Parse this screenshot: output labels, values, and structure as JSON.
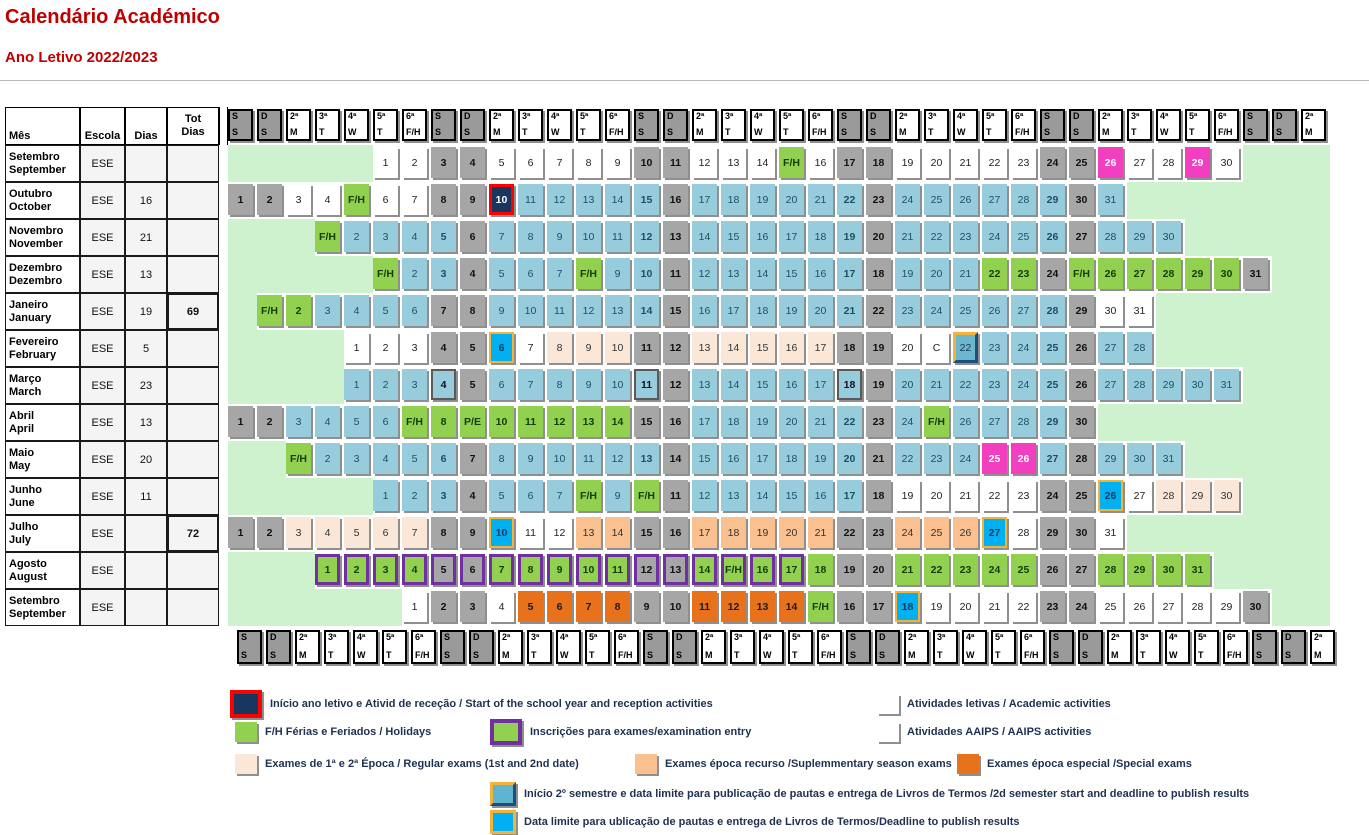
{
  "title": "Calendário Académico",
  "subtitle": "Ano Letivo 2022/2023",
  "colors": {
    "title_red": "#C00000",
    "academic_blue": "#97CCDD",
    "holiday_green": "#92D050",
    "weekend_gray": "#A6A6A6",
    "filler_green": "#CDF2CD",
    "aaips_pink": "#F23FC0",
    "exam_regular_cream": "#FAE7D8",
    "exam_recurso_peach": "#FAC090",
    "exam_especial_orange": "#E8721C",
    "start_navy": "#17375E",
    "start_border_red": "#FE0000",
    "deadline_blue": "#00B0F0",
    "deadline_border_gold": "#F2B33D",
    "inscricoes_border_purple": "#7030A0",
    "sem2_border_navy": "#1F4E79"
  },
  "table": {
    "left_headers": {
      "mes": "Mês",
      "escola": "Escola",
      "dias": "Dias",
      "tot_line1": "Tot",
      "tot_line2": "Dias"
    },
    "weekday_pattern": [
      [
        "S",
        "S",
        1
      ],
      [
        "D",
        "S",
        1
      ],
      [
        "2ª",
        "M",
        0
      ],
      [
        "3ª",
        "T",
        0
      ],
      [
        "4ª",
        "W",
        0
      ],
      [
        "5ª",
        "T",
        0
      ],
      [
        "6ª",
        "F/H",
        0
      ]
    ],
    "num_day_cols": 38,
    "months": [
      {
        "pt": "Setembro",
        "en": "September",
        "escola": "ESE",
        "dias": "",
        "tot": "",
        "start": 5,
        "codes": "w w g g w w w w w g g w w w h w g g w w w w w g g p w w p w",
        "labels": {
          "15": "F/H"
        }
      },
      {
        "pt": "Outubro",
        "en": "October",
        "escola": "ESE",
        "dias": "16",
        "tot": "",
        "start": 0,
        "codes": "g g w w h w w g g st b b b b b g b b b b b b g b b b b b b g b",
        "labels": {
          "5": "F/H"
        }
      },
      {
        "pt": "Novembro",
        "en": "November",
        "escola": "ESE",
        "dias": "21",
        "tot": "",
        "start": 3,
        "codes": "h b b b b g b b b b b b g b b b b b b g b b b b b b g b b b",
        "labels": {
          "1": "F/H"
        }
      },
      {
        "pt": "Dezembro",
        "en": "Dezembro",
        "escola": "ESE",
        "dias": "13",
        "tot": "",
        "start": 5,
        "codes": "h b b g b b b h b b g b b b b b b g b b b h h g h h h h h h g",
        "labels": {
          "1": "F/H",
          "8": "F/H",
          "25": "F/H"
        }
      },
      {
        "pt": "Janeiro",
        "en": "January",
        "escola": "ESE",
        "dias": "19",
        "tot": "69",
        "start": 1,
        "codes": "h h b b b b g g b b b b b b g b b b b b b g b b b b b b g w w",
        "labels": {
          "1": "F/H"
        }
      },
      {
        "pt": "Fevereiro",
        "en": "February",
        "escola": "ESE",
        "dias": "5",
        "tot": "",
        "start": 4,
        "codes": "w w w g g dl w c c c g g c c c c c g g w w d2 b b b g b b",
        "labels": {
          "21": "C"
        }
      },
      {
        "pt": "Março",
        "en": "March",
        "escola": "ESE",
        "dias": "23",
        "tot": "",
        "start": 4,
        "codes": "b b b bb g b b b b b bb g b b b b b bb g b b b b b b g b b b b b",
        "labels": {}
      },
      {
        "pt": "Abril",
        "en": "April",
        "escola": "ESE",
        "dias": "13",
        "tot": "",
        "start": 0,
        "codes": "g g b b b b h h h h h h h h g g b b b b b b g b h b b b b g",
        "labels": {
          "7": "F/H",
          "9": "P/E",
          "25": "F/H"
        }
      },
      {
        "pt": "Maio",
        "en": "May",
        "escola": "ESE",
        "dias": "20",
        "tot": "",
        "start": 2,
        "codes": "h b b b b b g b b b b b b g b b b b b b g b b b p p b g b b b",
        "labels": {
          "1": "F/H"
        }
      },
      {
        "pt": "Junho",
        "en": "June",
        "escola": "ESE",
        "dias": "11",
        "tot": "",
        "start": 5,
        "codes": "b b b g b b b h b h g b b b b b b g w w w w w g g dl w c c c",
        "labels": {
          "8": "F/H",
          "10": "F/H"
        }
      },
      {
        "pt": "Julho",
        "en": "July",
        "escola": "ESE",
        "dias": "",
        "tot": "72",
        "start": 0,
        "codes": "g g c c c c c g g dl w w r r g g r r r r r g g r r r dl w g g w",
        "labels": {}
      },
      {
        "pt": "Agosto",
        "en": "August",
        "escola": "ESE",
        "dias": "",
        "tot": "",
        "start": 3,
        "codes": "Ph Ph Ph Ph Pg Pg Ph Ph Ph Ph Ph Pg Pg Ph Ph Ph Ph h g g h h h h h g g h h h h",
        "labels": {
          "15": "F/H"
        }
      },
      {
        "pt": "Setembro",
        "en": "September",
        "escola": "ESE",
        "dias": "",
        "tot": "",
        "start": 6,
        "codes": "w g g w sp sp sp sp g g sp sp sp sp h g g dl w w w w g g w w w w w g",
        "labels": {
          "15": "F/H"
        }
      }
    ]
  },
  "legend": {
    "items": [
      {
        "key": "start",
        "text": "Início ano letivo e Ativid de receção / Start of the school year and reception activities"
      },
      {
        "key": "letivas",
        "text": "Atividades letivas / Academic activities"
      },
      {
        "key": "holiday",
        "text": "F/H Férias e Feriados / Holidays"
      },
      {
        "key": "inscr",
        "text": "Inscrições para exames/examination entry"
      },
      {
        "key": "aaips",
        "text": "Atividades AAIPS / AAIPS activities"
      },
      {
        "key": "exam1",
        "text": "Exames de 1ª e 2ª Época / Regular exams (1st and 2nd date)"
      },
      {
        "key": "recurso",
        "text": "Exames época recurso /Suplemmentary season exams"
      },
      {
        "key": "especial",
        "text": "Exames época especial /Special exams"
      },
      {
        "key": "sem2",
        "text": "Início 2º semestre e data limite para publicação de pautas e entrega de Livros de Termos /2d semester start and deadline to publish results"
      },
      {
        "key": "deadline",
        "text": "Data limite para ublicação de pautas e entrega de Livros de Termos/Deadline to publish results"
      }
    ]
  }
}
